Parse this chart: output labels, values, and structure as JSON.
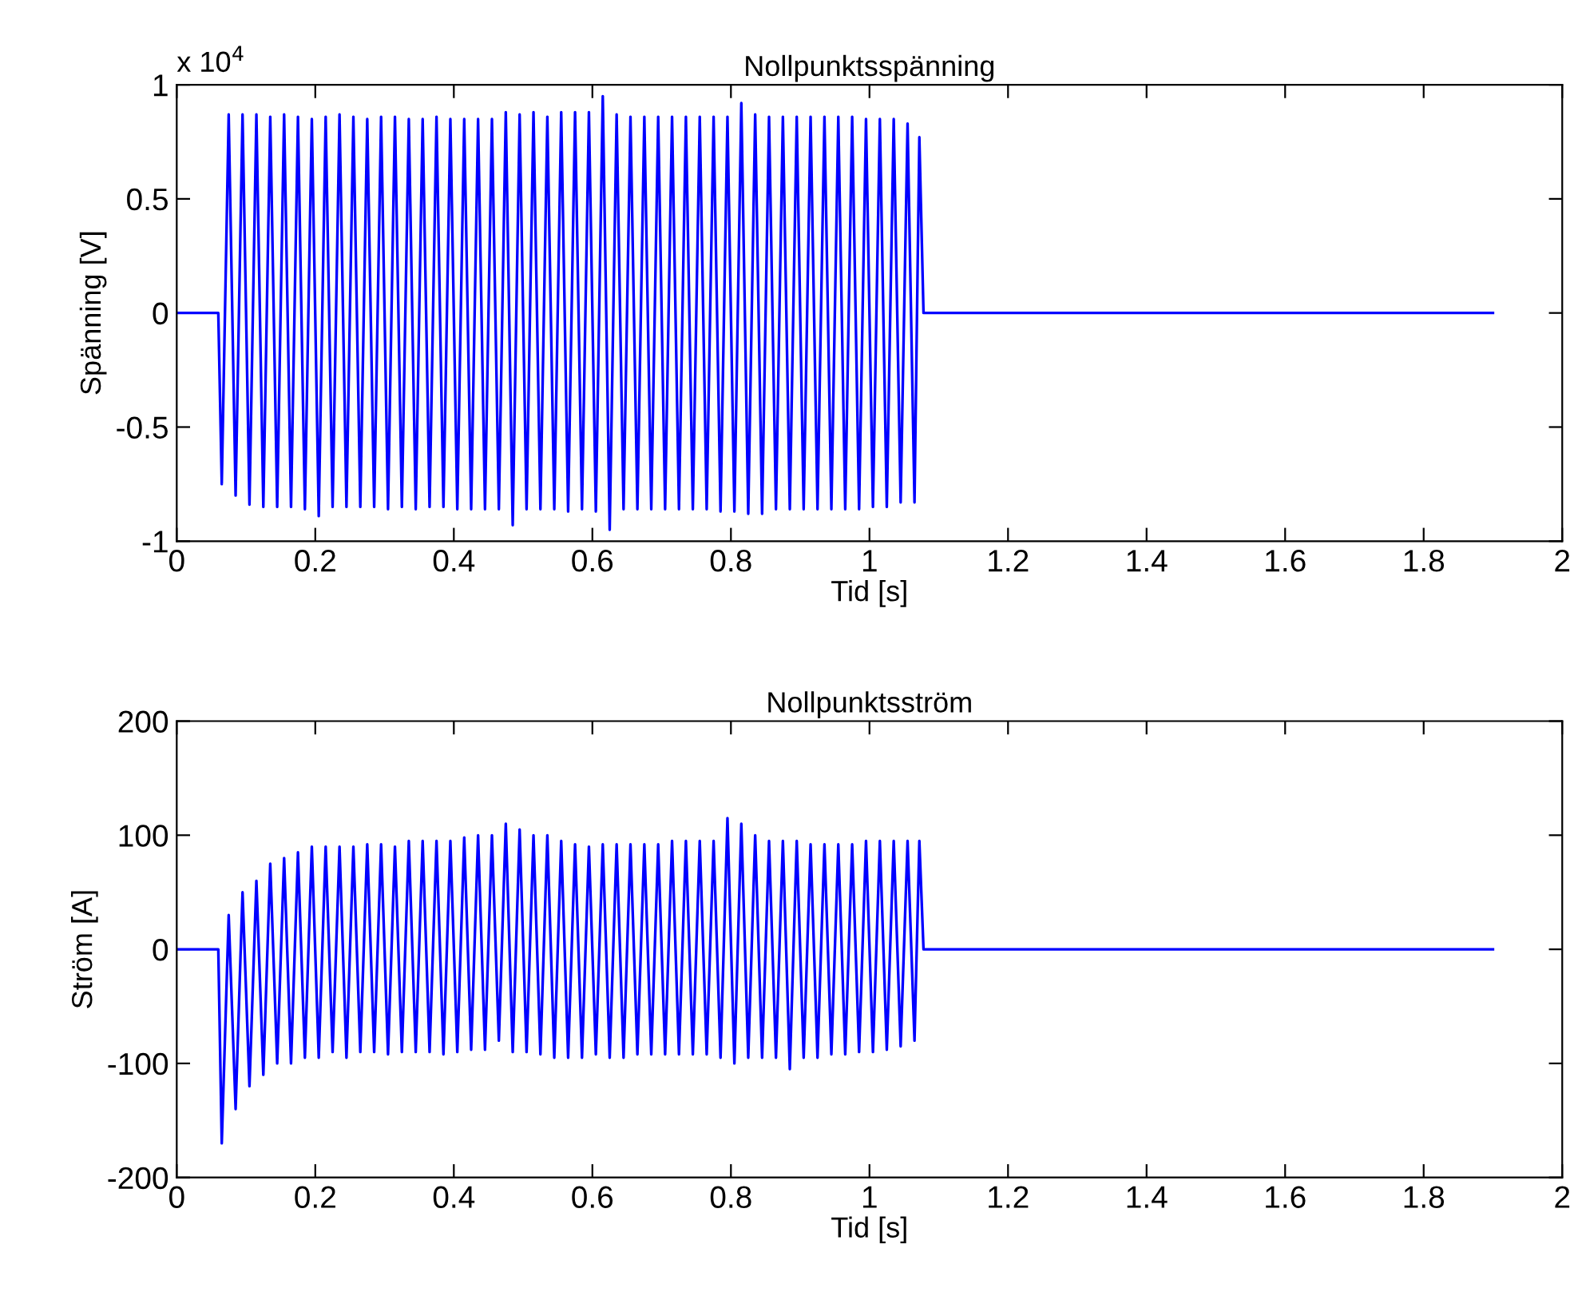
{
  "chart_data": [
    {
      "type": "line",
      "title": "Nollpunktsspänning",
      "xlabel": "Tid [s]",
      "ylabel": "Spänning [V]",
      "annotations": [
        "x 10$^{4}$"
      ],
      "x": [
        0,
        0.06,
        0.065,
        0.075,
        0.085,
        0.095,
        0.105,
        0.115,
        0.125,
        0.135,
        0.145,
        0.155,
        0.165,
        0.175,
        0.185,
        0.195,
        0.205,
        0.215,
        0.225,
        0.235,
        0.245,
        0.255,
        0.265,
        0.275,
        0.285,
        0.295,
        0.305,
        0.315,
        0.325,
        0.335,
        0.345,
        0.355,
        0.365,
        0.375,
        0.385,
        0.395,
        0.405,
        0.415,
        0.425,
        0.435,
        0.445,
        0.455,
        0.465,
        0.475,
        0.485,
        0.495,
        0.505,
        0.515,
        0.525,
        0.535,
        0.545,
        0.555,
        0.565,
        0.575,
        0.585,
        0.595,
        0.605,
        0.615,
        0.625,
        0.635,
        0.645,
        0.655,
        0.665,
        0.675,
        0.685,
        0.695,
        0.705,
        0.715,
        0.725,
        0.735,
        0.745,
        0.755,
        0.765,
        0.775,
        0.785,
        0.795,
        0.805,
        0.815,
        0.825,
        0.835,
        0.845,
        0.855,
        0.865,
        0.875,
        0.885,
        0.895,
        0.905,
        0.915,
        0.925,
        0.935,
        0.945,
        0.955,
        0.965,
        0.975,
        0.985,
        0.995,
        1.005,
        1.015,
        1.025,
        1.035,
        1.045,
        1.055,
        1.065,
        1.072,
        1.078,
        1.9
      ],
      "series": [
        {
          "color": "#0000ff",
          "values": [
            0,
            0,
            -0.75,
            0.87,
            -0.8,
            0.87,
            -0.84,
            0.87,
            -0.85,
            0.86,
            -0.85,
            0.87,
            -0.85,
            0.86,
            -0.86,
            0.85,
            -0.89,
            0.86,
            -0.85,
            0.87,
            -0.85,
            0.86,
            -0.85,
            0.85,
            -0.85,
            0.86,
            -0.86,
            0.86,
            -0.85,
            0.85,
            -0.86,
            0.85,
            -0.85,
            0.86,
            -0.85,
            0.85,
            -0.86,
            0.85,
            -0.86,
            0.85,
            -0.86,
            0.85,
            -0.86,
            0.88,
            -0.93,
            0.87,
            -0.86,
            0.88,
            -0.86,
            0.86,
            -0.86,
            0.88,
            -0.87,
            0.88,
            -0.86,
            0.88,
            -0.87,
            0.95,
            -0.95,
            0.87,
            -0.86,
            0.86,
            -0.86,
            0.86,
            -0.86,
            0.86,
            -0.86,
            0.86,
            -0.86,
            0.86,
            -0.86,
            0.86,
            -0.86,
            0.86,
            -0.87,
            0.86,
            -0.87,
            0.92,
            -0.88,
            0.87,
            -0.88,
            0.86,
            -0.86,
            0.86,
            -0.86,
            0.86,
            -0.86,
            0.86,
            -0.86,
            0.86,
            -0.86,
            0.86,
            -0.86,
            0.86,
            -0.86,
            0.85,
            -0.85,
            0.85,
            -0.85,
            0.85,
            -0.83,
            0.83,
            -0.83,
            0.77,
            0,
            0
          ]
        }
      ],
      "xlim": [
        0,
        2
      ],
      "xticks": [
        0,
        0.2,
        0.4,
        0.6,
        0.8,
        1,
        1.2,
        1.4,
        1.6,
        1.8,
        2
      ],
      "ylim": [
        -1,
        1
      ],
      "yticks": [
        -1,
        -0.5,
        0,
        0.5,
        1
      ],
      "grid": false,
      "legend": false
    },
    {
      "type": "line",
      "title": "Nollpunktsström",
      "xlabel": "Tid [s]",
      "ylabel": "Ström [A]",
      "x": [
        0,
        0.06,
        0.065,
        0.075,
        0.085,
        0.095,
        0.105,
        0.115,
        0.125,
        0.135,
        0.145,
        0.155,
        0.165,
        0.175,
        0.185,
        0.195,
        0.205,
        0.215,
        0.225,
        0.235,
        0.245,
        0.255,
        0.265,
        0.275,
        0.285,
        0.295,
        0.305,
        0.315,
        0.325,
        0.335,
        0.345,
        0.355,
        0.365,
        0.375,
        0.385,
        0.395,
        0.405,
        0.415,
        0.425,
        0.435,
        0.445,
        0.455,
        0.465,
        0.475,
        0.485,
        0.495,
        0.505,
        0.515,
        0.525,
        0.535,
        0.545,
        0.555,
        0.565,
        0.575,
        0.585,
        0.595,
        0.605,
        0.615,
        0.625,
        0.635,
        0.645,
        0.655,
        0.665,
        0.675,
        0.685,
        0.695,
        0.705,
        0.715,
        0.725,
        0.735,
        0.745,
        0.755,
        0.765,
        0.775,
        0.785,
        0.795,
        0.805,
        0.815,
        0.825,
        0.835,
        0.845,
        0.855,
        0.865,
        0.875,
        0.885,
        0.895,
        0.905,
        0.915,
        0.925,
        0.935,
        0.945,
        0.955,
        0.965,
        0.975,
        0.985,
        0.995,
        1.005,
        1.015,
        1.025,
        1.035,
        1.045,
        1.055,
        1.065,
        1.072,
        1.078,
        1.9
      ],
      "series": [
        {
          "color": "#0000ff",
          "values": [
            0,
            0,
            -170,
            30,
            -140,
            50,
            -120,
            60,
            -110,
            75,
            -100,
            80,
            -100,
            85,
            -95,
            90,
            -95,
            90,
            -90,
            90,
            -95,
            90,
            -90,
            92,
            -90,
            92,
            -92,
            90,
            -90,
            95,
            -90,
            95,
            -90,
            95,
            -92,
            95,
            -90,
            98,
            -88,
            100,
            -88,
            100,
            -80,
            110,
            -90,
            105,
            -90,
            100,
            -92,
            100,
            -95,
            95,
            -95,
            92,
            -95,
            90,
            -92,
            92,
            -95,
            92,
            -95,
            92,
            -92,
            92,
            -92,
            92,
            -92,
            95,
            -92,
            95,
            -92,
            95,
            -92,
            95,
            -95,
            115,
            -100,
            110,
            -95,
            100,
            -95,
            95,
            -95,
            95,
            -105,
            95,
            -95,
            92,
            -95,
            92,
            -92,
            92,
            -92,
            92,
            -90,
            95,
            -90,
            95,
            -88,
            95,
            -85,
            95,
            -80,
            95,
            0,
            0
          ]
        }
      ],
      "xlim": [
        0,
        2
      ],
      "xticks": [
        0,
        0.2,
        0.4,
        0.6,
        0.8,
        1,
        1.2,
        1.4,
        1.6,
        1.8,
        2
      ],
      "ylim": [
        -200,
        200
      ],
      "yticks": [
        -200,
        -100,
        0,
        100,
        200
      ],
      "grid": false,
      "legend": false
    }
  ]
}
